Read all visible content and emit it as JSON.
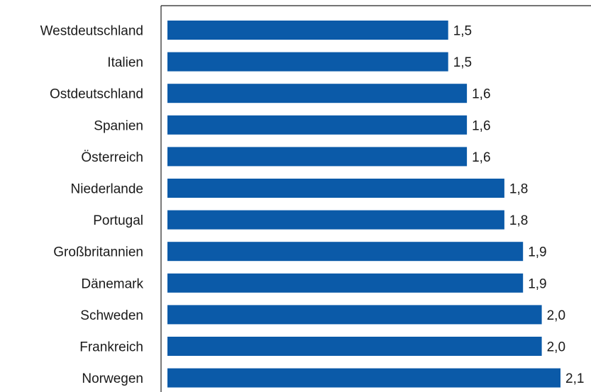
{
  "chart_data": {
    "type": "bar",
    "orientation": "horizontal",
    "categories": [
      "Westdeutschland",
      "Italien",
      "Ostdeutschland",
      "Spanien",
      "Österreich",
      "Niederlande",
      "Portugal",
      "Großbritannien",
      "Dänemark",
      "Schweden",
      "Frankreich",
      "Norwegen"
    ],
    "values": [
      1.5,
      1.5,
      1.6,
      1.6,
      1.6,
      1.8,
      1.8,
      1.9,
      1.9,
      2.0,
      2.0,
      2.1
    ],
    "value_labels": [
      "1,5",
      "1,5",
      "1,6",
      "1,6",
      "1,6",
      "1,8",
      "1,8",
      "1,9",
      "1,9",
      "2,0",
      "2,0",
      "2,1"
    ],
    "xlim": [
      0,
      2.1
    ],
    "grid": false,
    "legend": "none",
    "bar_color": "#0b5aa8"
  }
}
